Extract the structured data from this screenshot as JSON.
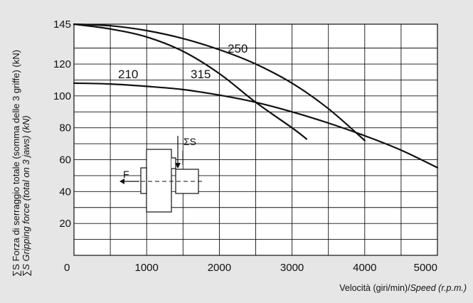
{
  "chart_data": {
    "type": "line",
    "xlabel": "Velocità (giri/min)/",
    "xlabel_italic": "Speed (r.p.m.)",
    "ylabel_lines": [
      "∑S Forza di serraggio totale (somma delle 3 griffe) (kN)",
      "∑S Gripping force (total on 3 jaws) (kN)"
    ],
    "xlim": [
      0,
      5000
    ],
    "ylim": [
      0,
      145
    ],
    "x_ticks": [
      "0",
      "1000",
      "2000",
      "3000",
      "4000",
      "5000"
    ],
    "y_ticks": [
      "20",
      "40",
      "60",
      "80",
      "100",
      "120",
      "145"
    ],
    "grid": true,
    "series": [
      {
        "name": "210",
        "x": [
          0,
          500,
          1000,
          1500,
          2000,
          2500,
          3000,
          3500,
          4000,
          4500,
          5000
        ],
        "y": [
          108,
          107.5,
          106,
          104,
          100.5,
          96,
          90,
          83,
          75,
          66,
          55
        ]
      },
      {
        "name": "250",
        "x": [
          0,
          500,
          1000,
          1500,
          2000,
          2500,
          3000,
          3500,
          4000
        ],
        "y": [
          145,
          144,
          141,
          136,
          129,
          120,
          108,
          92,
          72
        ]
      },
      {
        "name": "315",
        "x": [
          0,
          500,
          1000,
          1500,
          2000,
          2500,
          3000,
          3200
        ],
        "y": [
          145,
          142,
          137,
          128,
          114,
          96,
          80,
          73
        ]
      }
    ],
    "diagram_labels": {
      "force_f": "F",
      "sum_s": "ΣS"
    }
  }
}
